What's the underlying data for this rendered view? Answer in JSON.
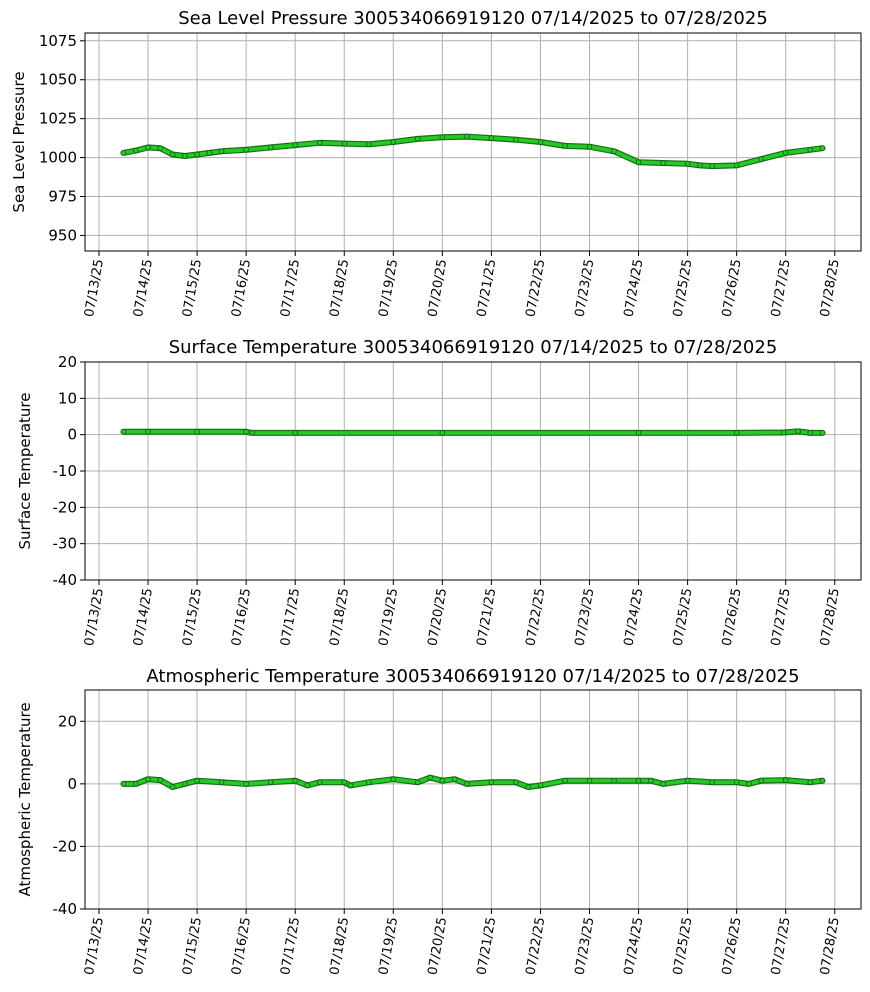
{
  "chart_data": [
    {
      "type": "line",
      "title": "Sea Level Pressure 300534066919120  07/14/2025 to 07/28/2025",
      "xlabel": "",
      "ylabel": "Sea Level Pressure",
      "ylim": [
        940,
        1080
      ],
      "yticks": [
        950,
        975,
        1000,
        1025,
        1050,
        1075
      ],
      "x_ticks": [
        "07/13/25",
        "07/14/25",
        "07/15/25",
        "07/16/25",
        "07/17/25",
        "07/18/25",
        "07/19/25",
        "07/20/25",
        "07/21/25",
        "07/22/25",
        "07/23/25",
        "07/24/25",
        "07/25/25",
        "07/26/25",
        "07/27/25",
        "07/28/25"
      ],
      "grid": true,
      "color": "#22cc22",
      "series": [
        {
          "x": [
            "07/13/25 12:00",
            "07/13/25 18:00",
            "07/14/25 00:00",
            "07/14/25 06:00",
            "07/14/25 12:00",
            "07/14/25 18:00",
            "07/15/25 00:00",
            "07/15/25 06:00",
            "07/15/25 12:00",
            "07/16/25 00:00",
            "07/16/25 12:00",
            "07/17/25 00:00",
            "07/17/25 12:00",
            "07/18/25 00:00",
            "07/18/25 12:00",
            "07/19/25 00:00",
            "07/19/25 12:00",
            "07/20/25 00:00",
            "07/20/25 12:00",
            "07/21/25 00:00",
            "07/21/25 12:00",
            "07/22/25 00:00",
            "07/22/25 12:00",
            "07/23/25 00:00",
            "07/23/25 12:00",
            "07/24/25 00:00",
            "07/24/25 12:00",
            "07/25/25 00:00",
            "07/25/25 06:00",
            "07/25/25 12:00",
            "07/26/25 00:00",
            "07/26/25 12:00",
            "07/27/25 00:00",
            "07/27/25 12:00",
            "07/27/25 18:00"
          ],
          "y": [
            1003,
            1004.5,
            1006.5,
            1006,
            1002,
            1001,
            1002,
            1003,
            1004,
            1005,
            1006.5,
            1008,
            1009.5,
            1009,
            1008.5,
            1010,
            1012,
            1013,
            1013.5,
            1012.5,
            1011.5,
            1010,
            1007.5,
            1007,
            1004,
            997,
            996.5,
            996,
            995,
            994.5,
            995,
            999,
            1003,
            1005,
            1006
          ]
        }
      ]
    },
    {
      "type": "line",
      "title": "Surface Temperature 300534066919120  07/14/2025 to 07/28/2025",
      "xlabel": "",
      "ylabel": "Surface Temperature",
      "ylim": [
        -40,
        20
      ],
      "yticks": [
        -40,
        -30,
        -20,
        -10,
        0,
        10,
        20
      ],
      "x_ticks": [
        "07/13/25",
        "07/14/25",
        "07/15/25",
        "07/16/25",
        "07/17/25",
        "07/18/25",
        "07/19/25",
        "07/20/25",
        "07/21/25",
        "07/22/25",
        "07/23/25",
        "07/24/25",
        "07/25/25",
        "07/26/25",
        "07/27/25",
        "07/28/25"
      ],
      "grid": true,
      "color": "#22cc22",
      "series": [
        {
          "x": [
            "07/13/25 12:00",
            "07/14/25 00:00",
            "07/15/25 00:00",
            "07/16/25 00:00",
            "07/16/25 03:00",
            "07/17/25 00:00",
            "07/20/25 00:00",
            "07/24/25 00:00",
            "07/26/25 00:00",
            "07/26/25 23:00",
            "07/27/25 06:00",
            "07/27/25 12:00",
            "07/27/25 18:00"
          ],
          "y": [
            0.8,
            0.8,
            0.8,
            0.8,
            0.5,
            0.5,
            0.5,
            0.5,
            0.5,
            0.6,
            0.9,
            0.5,
            0.5
          ]
        }
      ]
    },
    {
      "type": "line",
      "title": "Atmospheric Temperature 300534066919120  07/14/2025 to 07/28/2025",
      "xlabel": "",
      "ylabel": "Atmospheric Temperature",
      "ylim": [
        -40,
        30
      ],
      "yticks": [
        -40,
        -20,
        0,
        20
      ],
      "x_ticks": [
        "07/13/25",
        "07/14/25",
        "07/15/25",
        "07/16/25",
        "07/17/25",
        "07/18/25",
        "07/19/25",
        "07/20/25",
        "07/21/25",
        "07/22/25",
        "07/23/25",
        "07/24/25",
        "07/25/25",
        "07/26/25",
        "07/27/25",
        "07/28/25"
      ],
      "grid": true,
      "color": "#22cc22",
      "series": [
        {
          "x": [
            "07/13/25 12:00",
            "07/13/25 18:00",
            "07/14/25 00:00",
            "07/14/25 06:00",
            "07/14/25 12:00",
            "07/14/25 18:00",
            "07/15/25 00:00",
            "07/15/25 12:00",
            "07/16/25 00:00",
            "07/16/25 12:00",
            "07/17/25 00:00",
            "07/17/25 06:00",
            "07/17/25 12:00",
            "07/18/25 00:00",
            "07/18/25 03:00",
            "07/18/25 12:00",
            "07/19/25 00:00",
            "07/19/25 12:00",
            "07/19/25 18:00",
            "07/20/25 00:00",
            "07/20/25 06:00",
            "07/20/25 12:00",
            "07/21/25 00:00",
            "07/21/25 12:00",
            "07/21/25 18:00",
            "07/22/25 00:00",
            "07/22/25 12:00",
            "07/23/25 00:00",
            "07/23/25 12:00",
            "07/24/25 00:00",
            "07/24/25 06:00",
            "07/24/25 12:00",
            "07/25/25 00:00",
            "07/25/25 12:00",
            "07/26/25 00:00",
            "07/26/25 06:00",
            "07/26/25 12:00",
            "07/27/25 00:00",
            "07/27/25 12:00",
            "07/27/25 18:00"
          ],
          "y": [
            0,
            0,
            1.5,
            1.2,
            -1,
            0,
            1,
            0.5,
            0,
            0.5,
            1,
            -0.5,
            0.5,
            0.5,
            -0.5,
            0.5,
            1.5,
            0.5,
            2,
            1,
            1.5,
            0,
            0.5,
            0.5,
            -1,
            -0.5,
            1,
            1,
            1,
            1,
            1,
            0,
            1,
            0.5,
            0.5,
            0,
            1,
            1.2,
            0.5,
            1
          ]
        }
      ]
    }
  ]
}
